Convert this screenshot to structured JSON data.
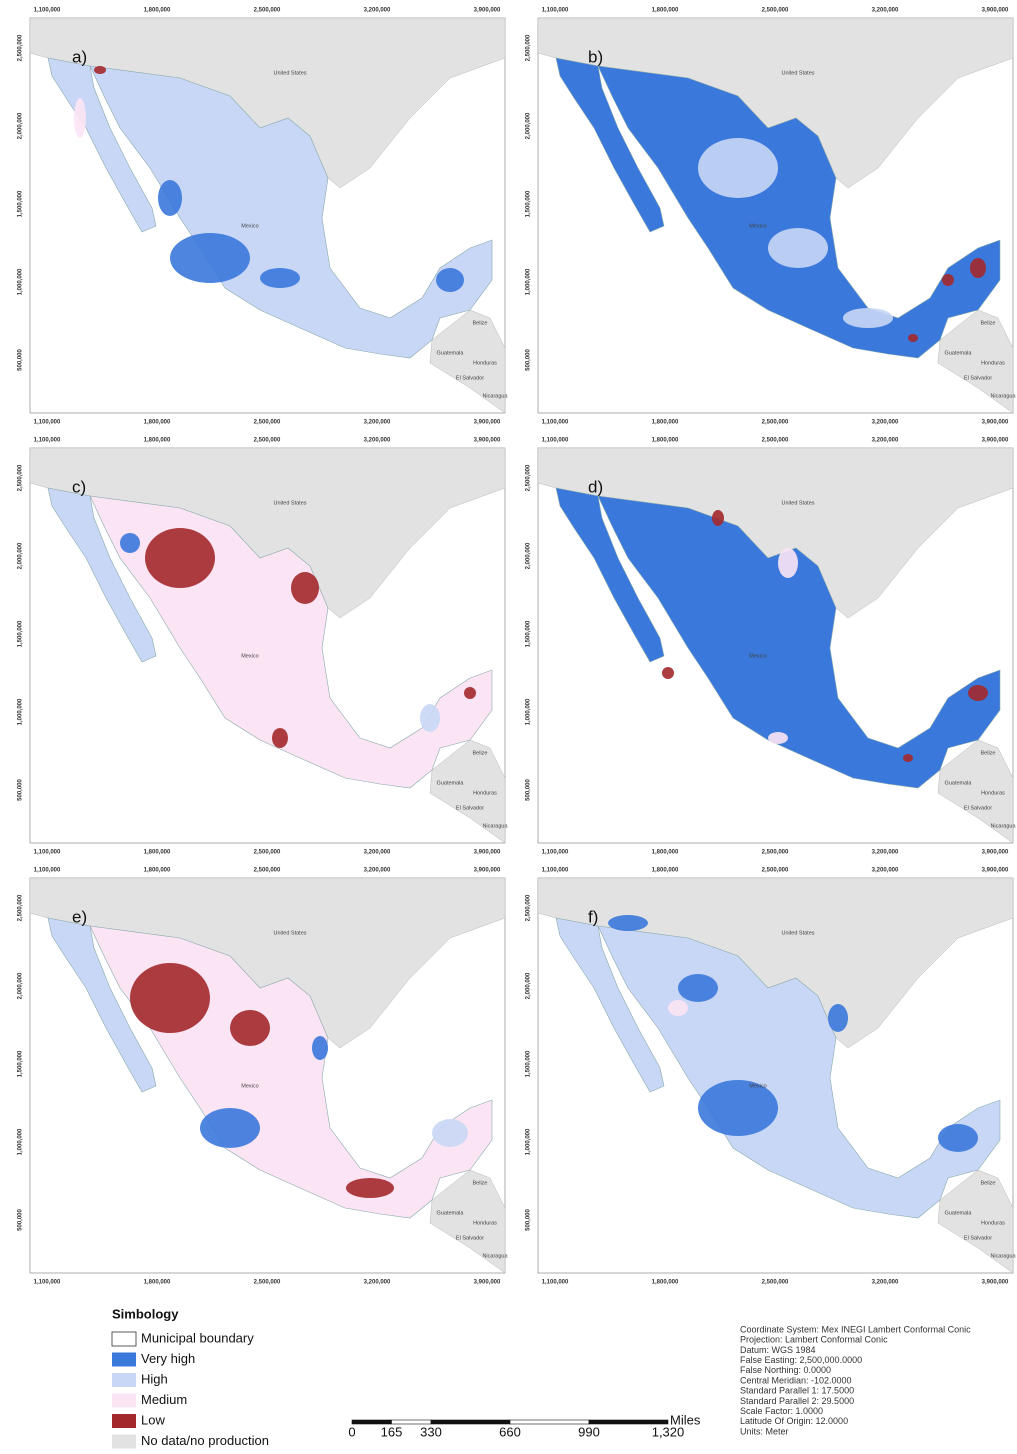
{
  "panels": [
    {
      "label": "a)"
    },
    {
      "label": "b)"
    },
    {
      "label": "c)"
    },
    {
      "label": "d)"
    },
    {
      "label": "e)"
    },
    {
      "label": "f)"
    }
  ],
  "x_ticks": [
    "1,100,000",
    "1,800,000",
    "2,500,000",
    "3,200,000",
    "3,900,000"
  ],
  "y_ticks": [
    "2,500,000",
    "2,000,000",
    "1,500,000",
    "1,000,000",
    "500,000"
  ],
  "places": [
    "United States",
    "Mexico",
    "Belize",
    "Guatemala",
    "Honduras",
    "El Salvador",
    "Nicaragua"
  ],
  "legend": {
    "title": "Simbology",
    "items": [
      {
        "label": "Municipal boundary",
        "color": "#ffffff"
      },
      {
        "label": "Very high",
        "color": "#3a78dc"
      },
      {
        "label": "High",
        "color": "#c9d7f6"
      },
      {
        "label": "Medium",
        "color": "#fbe4f4"
      },
      {
        "label": "Low",
        "color": "#a3282b"
      },
      {
        "label": "No data/no production",
        "color": "#e2e2e2"
      }
    ]
  },
  "scale_bar": {
    "ticks": [
      {
        "value": 0,
        "label": "0"
      },
      {
        "value": 165,
        "label": "165"
      },
      {
        "value": 330,
        "label": "330"
      },
      {
        "value": 660,
        "label": "660"
      },
      {
        "value": 990,
        "label": "990"
      },
      {
        "value": 1320,
        "label": "1,320"
      }
    ],
    "unit": "Miles"
  },
  "projection": [
    "Coordinate System: Mex INEGI Lambert Conformal Conic",
    "Projection: Lambert Conformal Conic",
    "Datum: WGS 1984",
    "False Easting: 2,500,000.0000",
    "False Northing: 0.0000",
    "Central Meridian: -102.0000",
    "Standard Parallel 1: 17.5000",
    "Standard Parallel 2: 29.5000",
    "Scale Factor: 1.0000",
    "Latitude Of Origin: 12.0000",
    "Units: Meter"
  ]
}
